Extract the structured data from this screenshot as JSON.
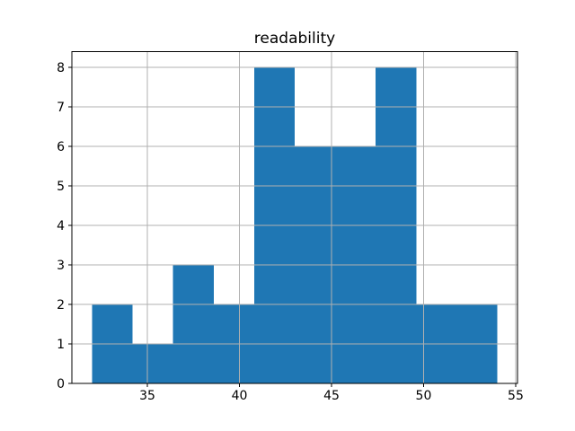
{
  "chart_data": {
    "type": "bar",
    "subtype": "histogram",
    "title": "readability",
    "xlabel": "",
    "ylabel": "",
    "bin_edges": [
      32.0,
      34.2,
      36.4,
      38.6,
      40.8,
      43.0,
      45.2,
      47.4,
      49.6,
      51.8,
      54.0
    ],
    "counts": [
      2,
      1,
      3,
      2,
      8,
      6,
      6,
      8,
      2,
      2
    ],
    "xlim": [
      30.9,
      55.1
    ],
    "ylim": [
      0,
      8.4
    ],
    "xticks": [
      35,
      40,
      45,
      50,
      55
    ],
    "yticks": [
      0,
      1,
      2,
      3,
      4,
      5,
      6,
      7,
      8
    ],
    "grid": true,
    "grid_above_bars": true,
    "legend": null,
    "colors": {
      "bar": "#1f77b4",
      "grid": "#b0b0b0",
      "spine": "#000000",
      "tick": "#000000",
      "text": "#000000",
      "background": "#ffffff"
    }
  }
}
